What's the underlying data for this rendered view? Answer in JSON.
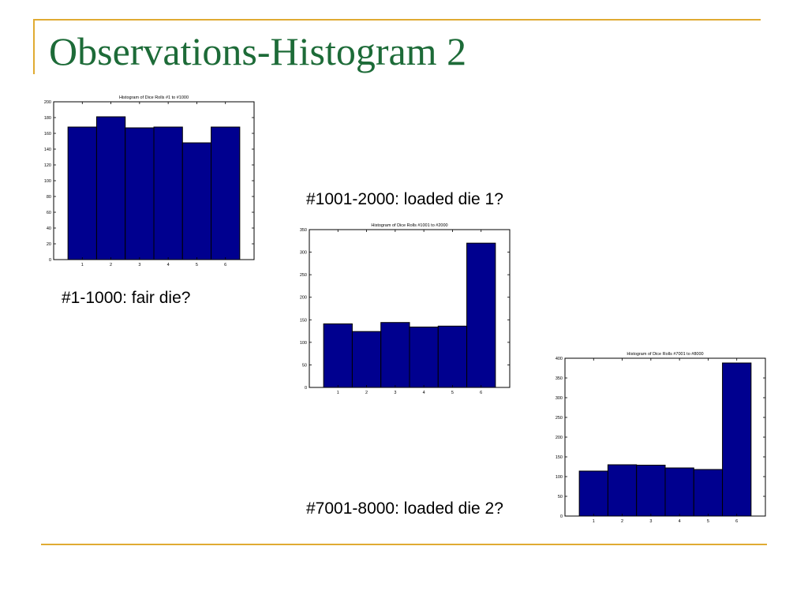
{
  "slide": {
    "title": "Observations-Histogram 2",
    "captions": [
      "#1-1000: fair die?",
      "#1001-2000: loaded die 1?",
      "#7001-8000: loaded die 2?"
    ],
    "accent_color": "#e0ab32",
    "title_color": "#1d6b38"
  },
  "chart_data": [
    {
      "type": "bar",
      "title": "Histogram of Dice Rolls #1 to #1000",
      "categories": [
        "1",
        "2",
        "3",
        "4",
        "5",
        "6"
      ],
      "values": [
        168,
        181,
        167,
        168,
        148,
        168
      ],
      "ylim": [
        0,
        200
      ],
      "yticks": [
        0,
        20,
        40,
        60,
        80,
        100,
        120,
        140,
        160,
        180,
        200
      ],
      "bar_color": "#00008f",
      "grid": false
    },
    {
      "type": "bar",
      "title": "Histogram of Dice Rolls #1001 to #2000",
      "categories": [
        "1",
        "2",
        "3",
        "4",
        "5",
        "6"
      ],
      "values": [
        141,
        124,
        144,
        134,
        136,
        320
      ],
      "ylim": [
        0,
        350
      ],
      "yticks": [
        0,
        50,
        100,
        150,
        200,
        250,
        300,
        350
      ],
      "bar_color": "#00008f",
      "grid": false
    },
    {
      "type": "bar",
      "title": "Histogram of Dice Rolls #7001 to #8000",
      "categories": [
        "1",
        "2",
        "3",
        "4",
        "5",
        "6"
      ],
      "values": [
        114,
        130,
        129,
        122,
        118,
        388
      ],
      "ylim": [
        0,
        400
      ],
      "yticks": [
        0,
        50,
        100,
        150,
        200,
        250,
        300,
        350,
        400
      ],
      "bar_color": "#00008f",
      "grid": false
    }
  ]
}
